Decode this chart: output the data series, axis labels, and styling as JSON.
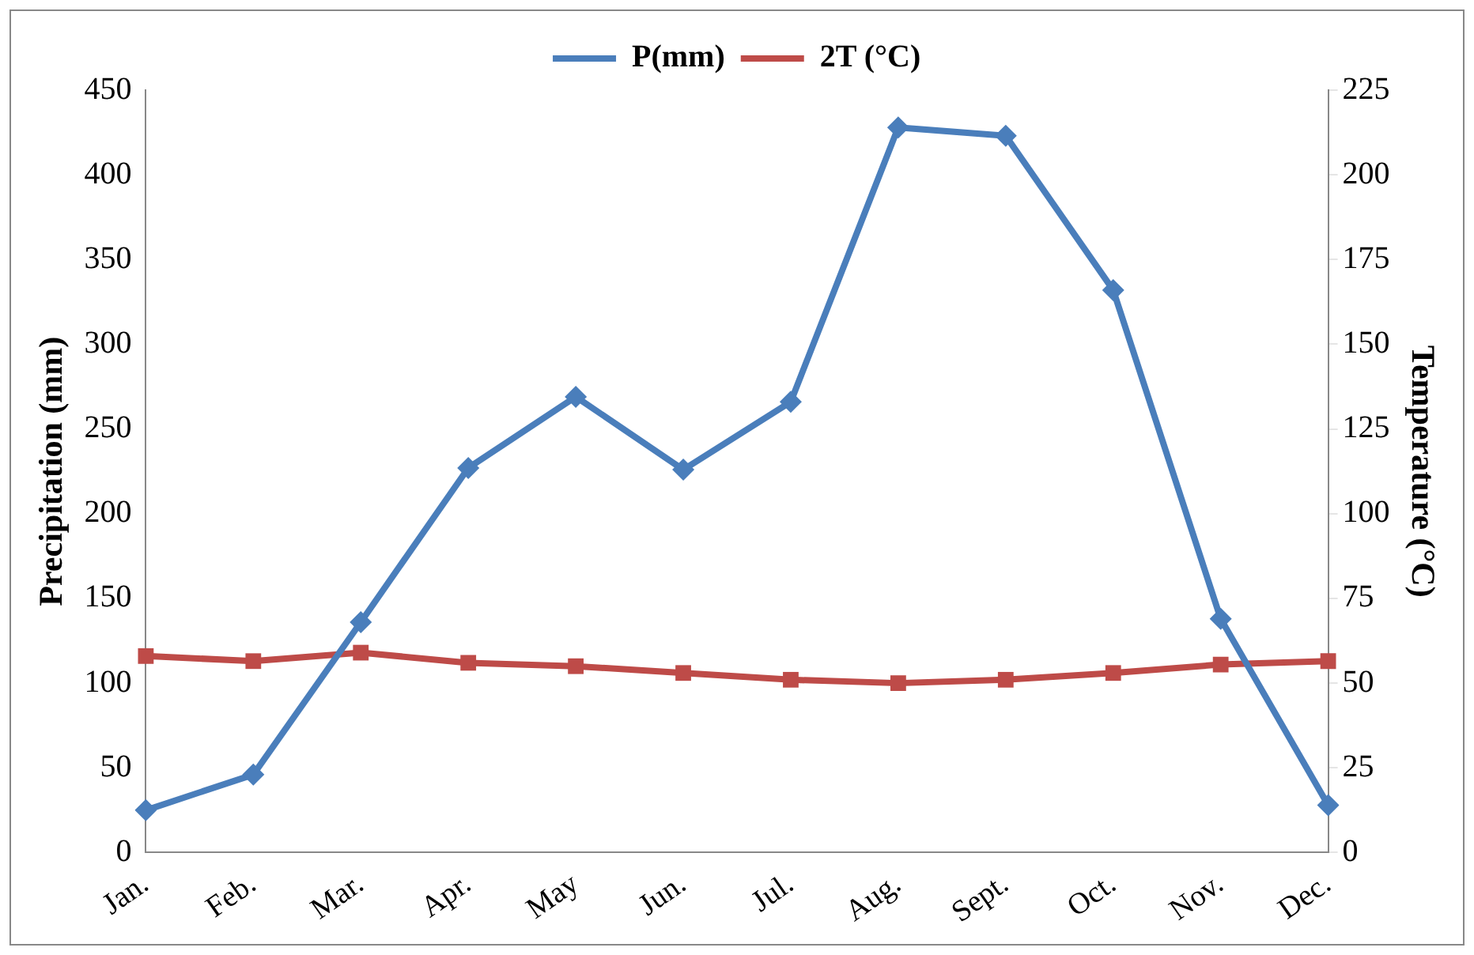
{
  "chart_data": {
    "type": "line",
    "ylabel": "Precipitation (mm)",
    "y2label": "Temperature (°C)",
    "categories": [
      "Jan.",
      "Feb.",
      "Mar.",
      "Apr.",
      "May",
      "Jun.",
      "Jul.",
      "Aug.",
      "Sept.",
      "Oct.",
      "Nov.",
      "Dec."
    ],
    "series": [
      {
        "name": "P(mm)",
        "color": "#4a7ebb",
        "marker": "diamond",
        "values": [
          25,
          46,
          136,
          227,
          269,
          226,
          266,
          428,
          423,
          332,
          138,
          28
        ]
      },
      {
        "name": "2T (°C)",
        "color": "#be4b48",
        "marker": "square",
        "axis": "y2",
        "values": [
          58,
          56.5,
          59,
          56,
          55,
          53,
          51,
          50,
          51,
          53,
          55.5,
          56.5
        ]
      }
    ],
    "ylim": [
      0,
      450
    ],
    "yticks": [
      0,
      50,
      100,
      150,
      200,
      250,
      300,
      350,
      400,
      450
    ],
    "y2lim": [
      0,
      225
    ],
    "y2ticks": [
      0,
      25,
      50,
      75,
      100,
      125,
      150,
      175,
      200,
      225
    ],
    "grid": false,
    "legend": "top",
    "line_style": "solid"
  }
}
